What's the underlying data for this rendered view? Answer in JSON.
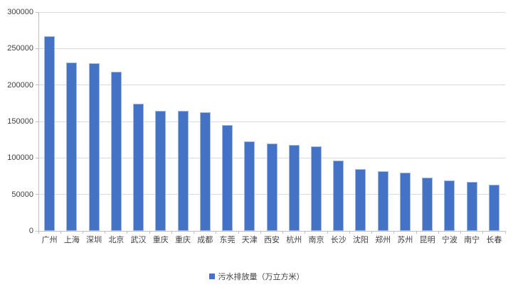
{
  "chart_data": {
    "type": "bar",
    "title": "",
    "categories": [
      "广州",
      "上海",
      "深圳",
      "北京",
      "武汉",
      "重庆",
      "重庆",
      "成都",
      "东莞",
      "天津",
      "西安",
      "杭州",
      "南京",
      "长沙",
      "沈阳",
      "郑州",
      "苏州",
      "昆明",
      "宁波",
      "南宁",
      "长春"
    ],
    "series": [
      {
        "name": "污水排放量（万立方米）",
        "values": [
          267000,
          231000,
          230000,
          218000,
          174000,
          165000,
          164500,
          163000,
          145000,
          123000,
          120000,
          118000,
          116000,
          96000,
          85000,
          81500,
          79500,
          73500,
          69500,
          67000,
          63500
        ]
      }
    ],
    "xlabel": "",
    "ylabel": "",
    "ylim": [
      0,
      300000
    ],
    "ytick_interval": 50000,
    "ytick_labels": [
      "0",
      "50000",
      "100000",
      "150000",
      "200000",
      "250000",
      "300000"
    ],
    "grid": true,
    "legend_position": "bottom",
    "colors": {
      "bar_fill": "#4472C4",
      "bar_border": "#A3B8E0",
      "gridline": "#D9D9D9",
      "axis_line": "#BFBFBF",
      "text": "#404040",
      "background": "#FFFFFF"
    }
  }
}
